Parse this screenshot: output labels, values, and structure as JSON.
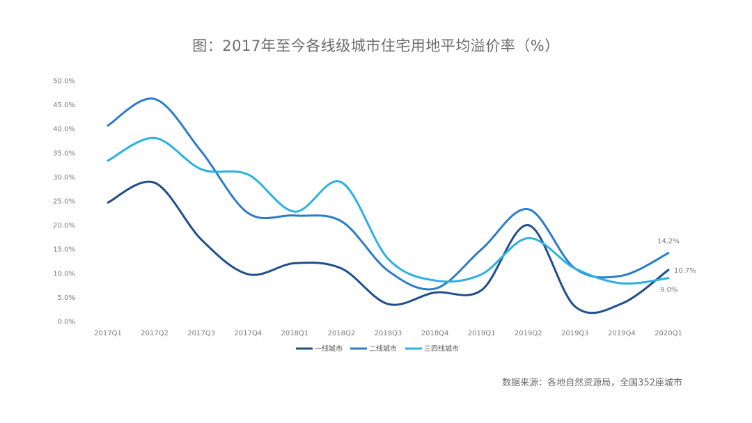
{
  "title": "图：2017年至今各线级城市住宅用地平均溢价率（%）",
  "source": "数据来源：各地自然资源局，全国352座城市",
  "chart_data": {
    "type": "line",
    "title": "图：2017年至今各线级城市住宅用地平均溢价率（%）",
    "xlabel": "",
    "ylabel": "",
    "ylim": [
      0,
      50
    ],
    "yticks": [
      0,
      5,
      10,
      15,
      20,
      25,
      30,
      35,
      40,
      45,
      50
    ],
    "ytick_labels": [
      "0.0%",
      "5.0%",
      "10.0%",
      "15.0%",
      "20.0%",
      "25.0%",
      "30.0%",
      "35.0%",
      "40.0%",
      "45.0%",
      "50.0%"
    ],
    "categories": [
      "2017Q1",
      "2017Q2",
      "2017Q3",
      "2017Q4",
      "2018Q1",
      "2018Q2",
      "2018Q3",
      "2018Q4",
      "2019Q1",
      "2019Q2",
      "2019Q3",
      "2019Q4",
      "2020Q1"
    ],
    "legend_position": "bottom",
    "series": [
      {
        "name": "一线城市",
        "color": "#1f4e8c",
        "values": [
          24.7,
          28.8,
          17.0,
          9.8,
          12.1,
          11.0,
          3.6,
          6.0,
          6.5,
          20.0,
          3.1,
          3.7,
          10.7
        ],
        "end_label": "10.7%"
      },
      {
        "name": "二线城市",
        "color": "#2a7cc7",
        "values": [
          40.7,
          46.2,
          35.3,
          22.5,
          22.0,
          20.8,
          10.5,
          6.8,
          15.0,
          23.3,
          11.0,
          9.5,
          14.2
        ],
        "end_label": "14.2%"
      },
      {
        "name": "三四线城市",
        "color": "#2ab0e3",
        "values": [
          33.4,
          38.1,
          31.6,
          30.5,
          22.8,
          28.9,
          13.0,
          8.5,
          9.8,
          17.3,
          11.0,
          7.9,
          9.0
        ],
        "end_label": "9.0%"
      }
    ]
  }
}
